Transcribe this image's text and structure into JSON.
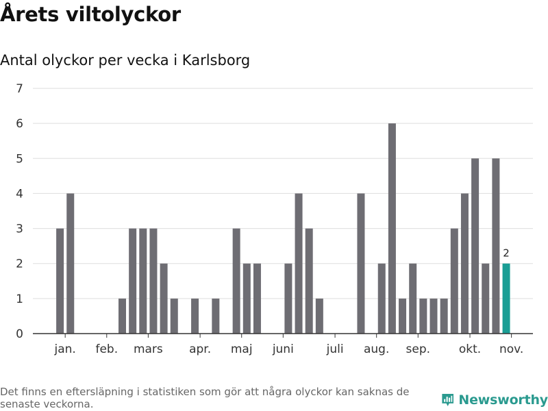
{
  "title": "Årets viltolyckor",
  "subtitle": "Antal olyckor per vecka i Karlsborg",
  "footnote": "Det finns en eftersläpning i statistiken som gör att några olyckor kan saknas de senaste veckorna.",
  "brand": {
    "name": "Newsworthy",
    "icon": "newsworthy-bar-chart-logo",
    "color": "#2a9a8f"
  },
  "colors": {
    "bar": "#6e6d73",
    "highlight": "#1a9e95",
    "grid": "#dddddd"
  },
  "chart_data": {
    "type": "bar",
    "title": "",
    "xlabel": "",
    "ylabel": "",
    "ylim": [
      0,
      7
    ],
    "yticks": [
      0,
      1,
      2,
      3,
      4,
      5,
      6,
      7
    ],
    "grid": true,
    "x": [
      1,
      2,
      3,
      4,
      5,
      6,
      7,
      8,
      9,
      10,
      11,
      12,
      13,
      14,
      15,
      16,
      17,
      18,
      19,
      20,
      21,
      22,
      23,
      24,
      25,
      26,
      27,
      28,
      29,
      30,
      31,
      32,
      33,
      34,
      35,
      36,
      37,
      38,
      39,
      40,
      41,
      42,
      43,
      44
    ],
    "values": [
      3,
      4,
      0,
      0,
      0,
      0,
      1,
      3,
      3,
      3,
      2,
      1,
      0,
      1,
      0,
      1,
      0,
      3,
      2,
      2,
      0,
      0,
      2,
      4,
      3,
      1,
      0,
      0,
      0,
      4,
      0,
      2,
      6,
      1,
      2,
      1,
      1,
      1,
      3,
      4,
      5,
      2,
      5,
      2
    ],
    "highlight_index": 43,
    "highlight_label": "2",
    "month_ticks": [
      {
        "label": "jan.",
        "at": 1.5
      },
      {
        "label": "feb.",
        "at": 5.5
      },
      {
        "label": "mars",
        "at": 9.5
      },
      {
        "label": "apr.",
        "at": 14.5
      },
      {
        "label": "maj",
        "at": 18.5
      },
      {
        "label": "juni",
        "at": 22.5
      },
      {
        "label": "juli",
        "at": 27.5
      },
      {
        "label": "aug.",
        "at": 31.5
      },
      {
        "label": "sep.",
        "at": 35.5
      },
      {
        "label": "okt.",
        "at": 40.5
      },
      {
        "label": "nov.",
        "at": 44.5
      }
    ]
  }
}
